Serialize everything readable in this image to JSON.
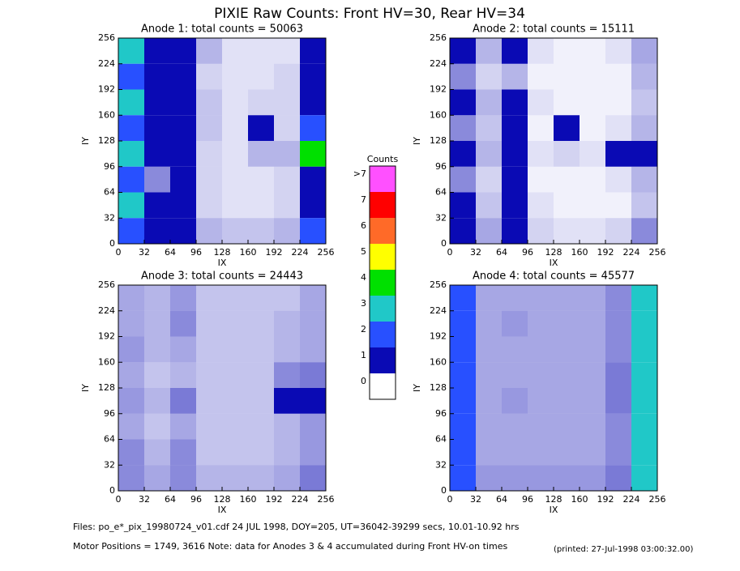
{
  "title": "PIXIE Raw Counts:  Front HV=30, Rear HV=34",
  "chart_data": [
    {
      "type": "heatmap",
      "title": "Anode 1: total counts = 50063",
      "xlabel": "IX",
      "ylabel": "IY",
      "xlim": [
        0,
        256
      ],
      "ylim": [
        0,
        256
      ],
      "xticks": [
        0,
        32,
        64,
        96,
        128,
        160,
        192,
        224,
        256
      ],
      "yticks": [
        0,
        32,
        64,
        96,
        128,
        160,
        192,
        224,
        256
      ],
      "z": [
        [
          3,
          1,
          1.5,
          0.5,
          0.2,
          0.2,
          0.2,
          1.5
        ],
        [
          2.5,
          1,
          1,
          0.3,
          0.2,
          0.2,
          0.3,
          1.5
        ],
        [
          3,
          1.2,
          1.5,
          0.4,
          0.2,
          0.3,
          0.3,
          1.5
        ],
        [
          2.5,
          1,
          1,
          0.4,
          0.2,
          1.5,
          0.3,
          2.5
        ],
        [
          3,
          1.2,
          1.5,
          0.3,
          0.2,
          0.5,
          0.5,
          4
        ],
        [
          2,
          0.8,
          1,
          0.3,
          0.2,
          0.2,
          0.3,
          1.5
        ],
        [
          3,
          1,
          1.5,
          0.3,
          0.2,
          0.2,
          0.3,
          1.5
        ],
        [
          2.5,
          1.2,
          1,
          0.5,
          0.4,
          0.4,
          0.5,
          2
        ]
      ]
    },
    {
      "type": "heatmap",
      "title": "Anode 2: total counts = 15111",
      "xlabel": "IX",
      "ylabel": "IY",
      "xlim": [
        0,
        256
      ],
      "ylim": [
        0,
        256
      ],
      "xticks": [
        0,
        32,
        64,
        96,
        128,
        160,
        192,
        224,
        256
      ],
      "yticks": [
        0,
        32,
        64,
        96,
        128,
        160,
        192,
        224,
        256
      ],
      "z": [
        [
          1,
          0.5,
          1,
          0.2,
          0.1,
          0.1,
          0.2,
          0.6
        ],
        [
          0.8,
          0.3,
          0.5,
          0.1,
          0.1,
          0.1,
          0.1,
          0.5
        ],
        [
          1,
          0.5,
          1,
          0.2,
          0.1,
          0.1,
          0.1,
          0.4
        ],
        [
          0.8,
          0.4,
          1,
          0.1,
          1,
          0.1,
          0.2,
          0.5
        ],
        [
          1,
          0.5,
          1,
          0.2,
          0.3,
          0.2,
          1.2,
          1.5
        ],
        [
          0.8,
          0.3,
          1,
          0.1,
          0.1,
          0.1,
          0.2,
          0.5
        ],
        [
          1,
          0.4,
          1,
          0.2,
          0.1,
          0.1,
          0.1,
          0.4
        ],
        [
          1,
          0.6,
          1,
          0.3,
          0.2,
          0.2,
          0.3,
          0.8
        ]
      ]
    },
    {
      "type": "heatmap",
      "title": "Anode 3: total counts = 24443",
      "xlabel": "IX",
      "ylabel": "IY",
      "xlim": [
        0,
        256
      ],
      "ylim": [
        0,
        256
      ],
      "xticks": [
        0,
        32,
        64,
        96,
        128,
        160,
        192,
        224,
        256
      ],
      "yticks": [
        0,
        32,
        64,
        96,
        128,
        160,
        192,
        224,
        256
      ],
      "z": [
        [
          0.6,
          0.5,
          0.7,
          0.4,
          0.4,
          0.4,
          0.4,
          0.6
        ],
        [
          0.6,
          0.5,
          0.8,
          0.4,
          0.4,
          0.4,
          0.5,
          0.6
        ],
        [
          0.7,
          0.5,
          0.6,
          0.4,
          0.4,
          0.4,
          0.5,
          0.6
        ],
        [
          0.6,
          0.4,
          0.5,
          0.4,
          0.4,
          0.4,
          0.8,
          0.9
        ],
        [
          0.7,
          0.5,
          0.9,
          0.4,
          0.4,
          0.4,
          1,
          1
        ],
        [
          0.6,
          0.4,
          0.6,
          0.4,
          0.4,
          0.4,
          0.5,
          0.7
        ],
        [
          0.8,
          0.5,
          0.8,
          0.4,
          0.4,
          0.4,
          0.5,
          0.7
        ],
        [
          0.8,
          0.6,
          0.8,
          0.5,
          0.5,
          0.5,
          0.6,
          0.9
        ]
      ]
    },
    {
      "type": "heatmap",
      "title": "Anode 4: total counts = 45577",
      "xlabel": "IX",
      "ylabel": "IY",
      "xlim": [
        0,
        256
      ],
      "ylim": [
        0,
        256
      ],
      "xticks": [
        0,
        32,
        64,
        96,
        128,
        160,
        192,
        224,
        256
      ],
      "yticks": [
        0,
        32,
        64,
        96,
        128,
        160,
        192,
        224,
        256
      ],
      "z": [
        [
          2,
          0.6,
          0.6,
          0.6,
          0.6,
          0.6,
          0.8,
          3
        ],
        [
          2,
          0.6,
          0.7,
          0.6,
          0.6,
          0.6,
          0.8,
          3
        ],
        [
          2.5,
          0.6,
          0.6,
          0.6,
          0.6,
          0.6,
          0.8,
          3
        ],
        [
          2,
          0.6,
          0.6,
          0.6,
          0.6,
          0.6,
          0.9,
          3
        ],
        [
          2.5,
          0.6,
          0.7,
          0.6,
          0.6,
          0.6,
          0.9,
          3.5
        ],
        [
          2,
          0.6,
          0.6,
          0.6,
          0.6,
          0.6,
          0.8,
          3
        ],
        [
          2,
          0.6,
          0.6,
          0.6,
          0.6,
          0.6,
          0.8,
          3
        ],
        [
          2.5,
          0.7,
          0.7,
          0.7,
          0.7,
          0.7,
          0.9,
          3
        ]
      ]
    }
  ],
  "colorbar": {
    "title": "Counts",
    "levels": [
      0,
      1,
      2,
      3,
      4,
      5,
      6,
      7,
      {
        "value": 8,
        "label": ">7"
      }
    ],
    "colors": [
      "#ffffff",
      "#0a0ab4",
      "#2850ff",
      "#20c8c8",
      "#00e000",
      "#ffff00",
      "#ff6a28",
      "#ff0000",
      "#ff50ff"
    ]
  },
  "footer": {
    "files": "Files: po_e*_pix_19980724_v01.cdf    24 JUL 1998, DOY=205, UT=36042-39299 secs, 10.01-10.92 hrs",
    "motor": "Motor Positions = 1749, 3616   Note: data for Anodes 3 & 4 accumulated during Front HV-on times",
    "printed": "(printed: 27-Jul-1998 03:00:32.00)"
  }
}
